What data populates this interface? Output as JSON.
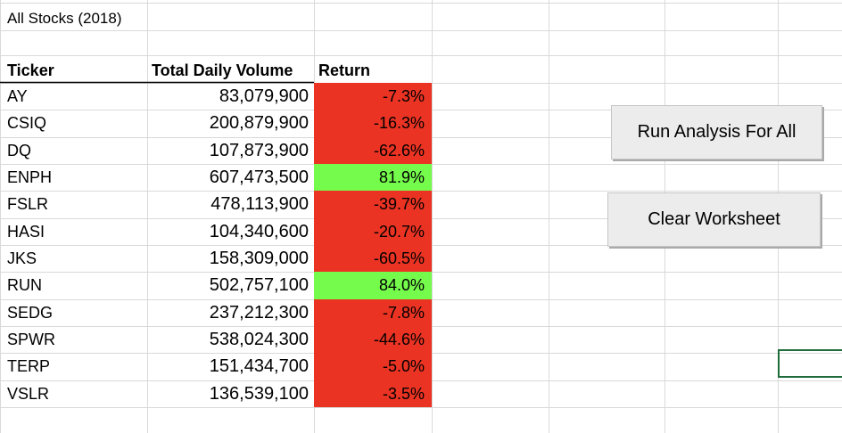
{
  "sheet": {
    "title": "All Stocks (2018)",
    "headers": {
      "ticker": "Ticker",
      "volume": "Total Daily Volume",
      "return": "Return"
    },
    "rows": [
      {
        "ticker": "AY",
        "volume": "83,079,900",
        "return": "-7.3%",
        "positive": false
      },
      {
        "ticker": "CSIQ",
        "volume": "200,879,900",
        "return": "-16.3%",
        "positive": false
      },
      {
        "ticker": "DQ",
        "volume": "107,873,900",
        "return": "-62.6%",
        "positive": false
      },
      {
        "ticker": "ENPH",
        "volume": "607,473,500",
        "return": "81.9%",
        "positive": true
      },
      {
        "ticker": "FSLR",
        "volume": "478,113,900",
        "return": "-39.7%",
        "positive": false
      },
      {
        "ticker": "HASI",
        "volume": "104,340,600",
        "return": "-20.7%",
        "positive": false
      },
      {
        "ticker": "JKS",
        "volume": "158,309,000",
        "return": "-60.5%",
        "positive": false
      },
      {
        "ticker": "RUN",
        "volume": "502,757,100",
        "return": "84.0%",
        "positive": true
      },
      {
        "ticker": "SEDG",
        "volume": "237,212,300",
        "return": "-7.8%",
        "positive": false
      },
      {
        "ticker": "SPWR",
        "volume": "538,024,300",
        "return": "-44.6%",
        "positive": false
      },
      {
        "ticker": "TERP",
        "volume": "151,434,700",
        "return": "-5.0%",
        "positive": false
      },
      {
        "ticker": "VSLR",
        "volume": "136,539,100",
        "return": "-3.5%",
        "positive": false
      }
    ]
  },
  "buttons": {
    "run_label": "Run Analysis For All",
    "clear_label": "Clear Worksheet"
  },
  "colors": {
    "negative": "#ea3323",
    "positive": "#75fb4c",
    "gridline": "#d9d9d9",
    "selection": "#1f6b3a"
  }
}
